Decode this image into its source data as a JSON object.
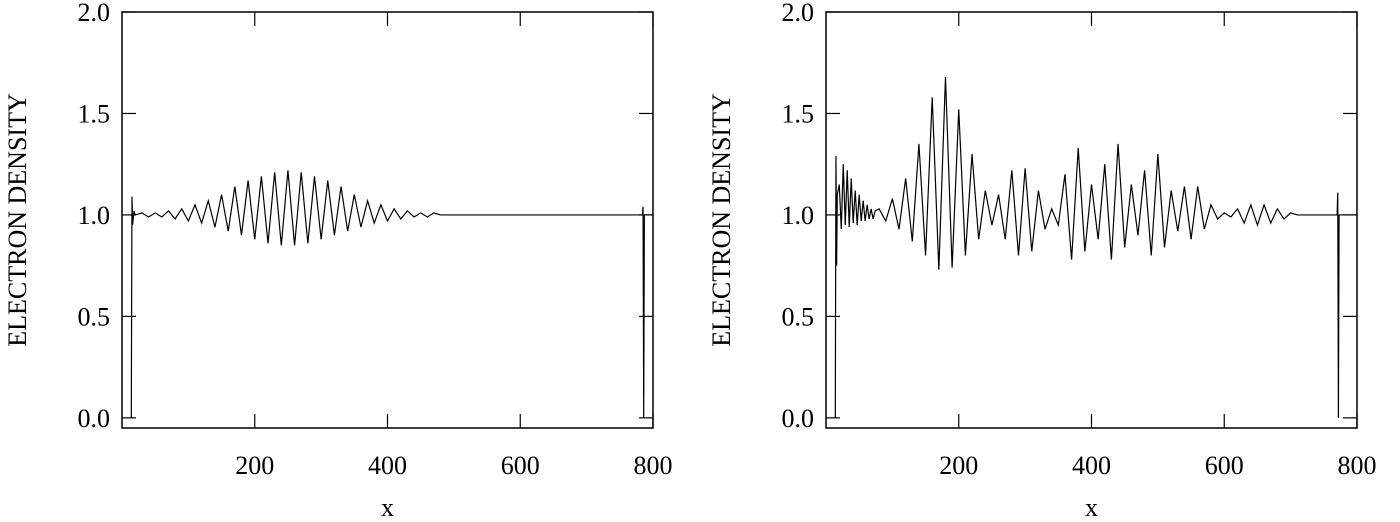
{
  "chart_data": [
    {
      "type": "line",
      "xlabel": "x",
      "ylabel": "ELECTRON DENSITY",
      "color": "#000000",
      "xlim": [
        0,
        800
      ],
      "ylim": [
        -0.05,
        2.0
      ],
      "xticks": [
        200,
        400,
        600,
        800
      ],
      "yticks": [
        {
          "value": 0,
          "label": "0.0"
        },
        {
          "value": 0.5,
          "label": "0.5"
        },
        {
          "value": 1,
          "label": "1.0"
        },
        {
          "value": 1.5,
          "label": "1.5"
        },
        {
          "value": 2,
          "label": "2.0"
        }
      ],
      "x": [
        14,
        15,
        16,
        18,
        20,
        30,
        40,
        50,
        60,
        70,
        80,
        90,
        100,
        110,
        120,
        130,
        140,
        150,
        160,
        170,
        180,
        190,
        200,
        210,
        220,
        230,
        240,
        250,
        260,
        270,
        280,
        290,
        300,
        310,
        320,
        330,
        340,
        350,
        360,
        370,
        380,
        390,
        400,
        410,
        420,
        430,
        440,
        450,
        460,
        470,
        480,
        500,
        600,
        700,
        784,
        785,
        786,
        787,
        800
      ],
      "values": [
        0.0,
        1.09,
        0.95,
        1.02,
        1.0,
        1.01,
        0.99,
        1.01,
        0.99,
        1.02,
        0.98,
        1.03,
        0.97,
        1.05,
        0.96,
        1.07,
        0.94,
        1.1,
        0.92,
        1.14,
        0.9,
        1.17,
        0.88,
        1.19,
        0.86,
        1.21,
        0.85,
        1.22,
        0.85,
        1.21,
        0.86,
        1.19,
        0.88,
        1.17,
        0.9,
        1.14,
        0.92,
        1.1,
        0.94,
        1.07,
        0.96,
        1.05,
        0.97,
        1.03,
        0.98,
        1.02,
        0.99,
        1.01,
        0.99,
        1.01,
        1.0,
        1.0,
        1.0,
        1.0,
        1.0,
        1.04,
        0.0,
        1.0,
        1.0
      ]
    },
    {
      "type": "line",
      "xlabel": "x",
      "ylabel": "ELECTRON DENSITY",
      "color": "#000000",
      "xlim": [
        0,
        800
      ],
      "ylim": [
        -0.05,
        2.0
      ],
      "xticks": [
        200,
        400,
        600,
        800
      ],
      "yticks": [
        {
          "value": 0,
          "label": "0.0"
        },
        {
          "value": 0.5,
          "label": "0.5"
        },
        {
          "value": 1,
          "label": "1.0"
        },
        {
          "value": 1.5,
          "label": "1.5"
        },
        {
          "value": 2,
          "label": "2.0"
        }
      ],
      "x": [
        14,
        15,
        16,
        17,
        20,
        23,
        26,
        29,
        32,
        35,
        38,
        41,
        44,
        47,
        50,
        53,
        56,
        59,
        62,
        65,
        68,
        71,
        74,
        80,
        90,
        100,
        110,
        120,
        130,
        140,
        150,
        160,
        170,
        180,
        190,
        200,
        210,
        220,
        230,
        240,
        250,
        260,
        270,
        280,
        290,
        300,
        310,
        320,
        330,
        340,
        350,
        360,
        370,
        380,
        390,
        400,
        410,
        420,
        430,
        440,
        450,
        460,
        470,
        480,
        490,
        500,
        510,
        520,
        530,
        540,
        550,
        560,
        570,
        580,
        590,
        600,
        610,
        620,
        630,
        640,
        650,
        660,
        670,
        680,
        690,
        700,
        710,
        720,
        770,
        771,
        772,
        773,
        800
      ],
      "values": [
        0.0,
        1.29,
        0.75,
        1.1,
        1.15,
        0.93,
        1.25,
        0.95,
        1.22,
        0.94,
        1.18,
        0.96,
        1.12,
        0.95,
        1.1,
        0.97,
        1.07,
        0.97,
        1.05,
        0.98,
        1.03,
        0.98,
        1.02,
        1.03,
        0.97,
        1.08,
        0.93,
        1.18,
        0.87,
        1.35,
        0.8,
        1.58,
        0.73,
        1.68,
        0.74,
        1.52,
        0.8,
        1.3,
        0.88,
        1.12,
        0.95,
        1.1,
        0.88,
        1.22,
        0.8,
        1.23,
        0.82,
        1.12,
        0.93,
        1.03,
        0.95,
        1.2,
        0.78,
        1.33,
        0.82,
        1.15,
        0.88,
        1.25,
        0.78,
        1.35,
        0.84,
        1.15,
        0.9,
        1.22,
        0.8,
        1.3,
        0.84,
        1.12,
        0.92,
        1.14,
        0.88,
        1.14,
        0.93,
        1.05,
        0.98,
        1.01,
        0.99,
        1.03,
        0.96,
        1.05,
        0.95,
        1.05,
        0.96,
        1.03,
        0.98,
        1.01,
        1.0,
        1.0,
        1.0,
        1.11,
        0.0,
        1.0,
        1.0
      ]
    }
  ]
}
